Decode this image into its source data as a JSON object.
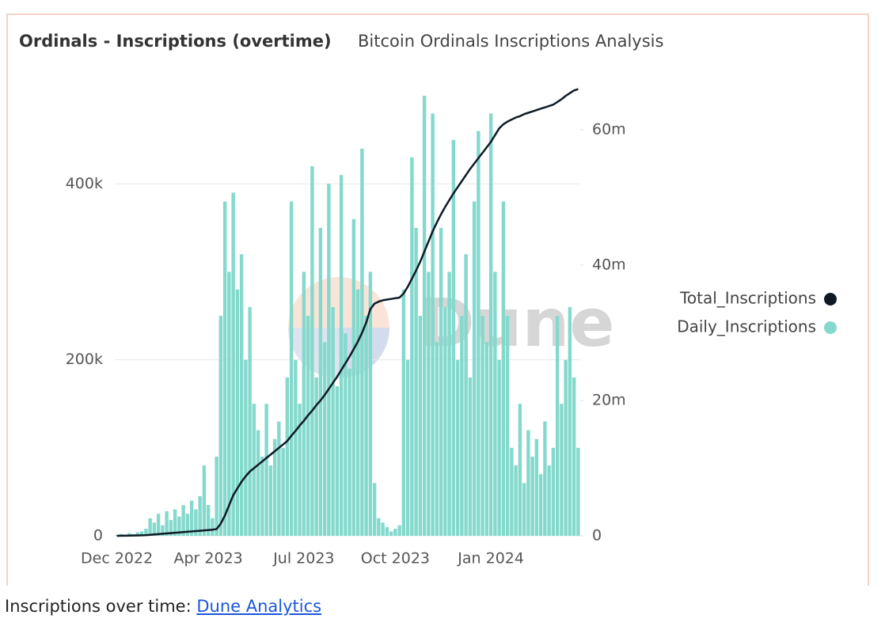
{
  "chart_data": {
    "type": "bar",
    "title": "Ordinals - Inscriptions (overtime)",
    "subtitle": "Bitcoin Ordinals Inscriptions Analysis",
    "watermark": "Dune",
    "categories": [
      "Dec 2022",
      null,
      null,
      null,
      null,
      null,
      null,
      null,
      null,
      null,
      null,
      null,
      null,
      null,
      null,
      null,
      null,
      null,
      null,
      null,
      null,
      null,
      "Apr 2023",
      null,
      null,
      null,
      null,
      null,
      null,
      null,
      null,
      null,
      null,
      null,
      null,
      null,
      null,
      null,
      null,
      null,
      null,
      null,
      null,
      null,
      null,
      "Jul 2023",
      null,
      null,
      null,
      null,
      null,
      null,
      null,
      null,
      null,
      null,
      null,
      null,
      null,
      null,
      null,
      null,
      null,
      null,
      null,
      null,
      null,
      "Oct 2023",
      null,
      null,
      null,
      null,
      null,
      null,
      null,
      null,
      null,
      null,
      null,
      null,
      null,
      null,
      null,
      null,
      null,
      null,
      null,
      null,
      null,
      null,
      "Jan 2024",
      null,
      null,
      null,
      null,
      null,
      null,
      null,
      null,
      null,
      null,
      null,
      null,
      null,
      null,
      null,
      null,
      null,
      null,
      null,
      null,
      null
    ],
    "series": [
      {
        "name": "Total_Inscriptions",
        "color": "#0d1a26",
        "type": "line",
        "axis": "y2",
        "values": [
          0,
          10000,
          20000,
          30000,
          40000,
          60000,
          80000,
          100000,
          150000,
          200000,
          250000,
          300000,
          350000,
          400000,
          450000,
          500000,
          550000,
          600000,
          650000,
          700000,
          750000,
          800000,
          850000,
          900000,
          1000000,
          1800000,
          3000000,
          4500000,
          6000000,
          7000000,
          8000000,
          8800000,
          9500000,
          10000000,
          10500000,
          11000000,
          11500000,
          12000000,
          12500000,
          13000000,
          13500000,
          14000000,
          14800000,
          15500000,
          16300000,
          17000000,
          17800000,
          18500000,
          19300000,
          20000000,
          20800000,
          21700000,
          22600000,
          23500000,
          24500000,
          25500000,
          26500000,
          27600000,
          28700000,
          30000000,
          31500000,
          33500000,
          34300000,
          34600000,
          34800000,
          34900000,
          35000000,
          35100000,
          35200000,
          35800000,
          36800000,
          38000000,
          39200000,
          40500000,
          42000000,
          43500000,
          45000000,
          46300000,
          47500000,
          48600000,
          49600000,
          50600000,
          51500000,
          52400000,
          53300000,
          54200000,
          55000000,
          55800000,
          56600000,
          57400000,
          58200000,
          59200000,
          60200000,
          60800000,
          61200000,
          61500000,
          61800000,
          62000000,
          62300000,
          62500000,
          62700000,
          62900000,
          63100000,
          63300000,
          63500000,
          63700000,
          64100000,
          64500000,
          65000000,
          65400000,
          65800000,
          66000000
        ]
      },
      {
        "name": "Daily_Inscriptions",
        "color": "#84d9cd",
        "type": "bar",
        "values": [
          1000,
          2000,
          1500,
          3000,
          2000,
          4000,
          5000,
          8000,
          20000,
          15000,
          25000,
          12000,
          28000,
          18000,
          30000,
          22000,
          35000,
          25000,
          40000,
          30000,
          45000,
          80000,
          35000,
          20000,
          90000,
          250000,
          380000,
          300000,
          390000,
          280000,
          320000,
          200000,
          260000,
          150000,
          120000,
          90000,
          150000,
          80000,
          110000,
          130000,
          100000,
          180000,
          380000,
          200000,
          150000,
          300000,
          250000,
          420000,
          180000,
          350000,
          220000,
          400000,
          260000,
          170000,
          410000,
          230000,
          190000,
          360000,
          280000,
          440000,
          250000,
          300000,
          60000,
          20000,
          15000,
          10000,
          5000,
          8000,
          12000,
          280000,
          200000,
          430000,
          350000,
          250000,
          500000,
          300000,
          480000,
          220000,
          350000,
          260000,
          300000,
          450000,
          200000,
          250000,
          320000,
          180000,
          380000,
          460000,
          250000,
          220000,
          480000,
          300000,
          200000,
          380000,
          250000,
          100000,
          80000,
          150000,
          60000,
          120000,
          90000,
          110000,
          70000,
          130000,
          80000,
          100000,
          250000,
          150000,
          200000,
          260000,
          180000,
          100000
        ]
      }
    ],
    "ylim": [
      0,
      510000
    ],
    "yticks": [
      0,
      {
        "value": 200000,
        "label": "200k"
      },
      {
        "value": 400000,
        "label": "400k"
      }
    ],
    "y2lim": [
      0,
      66300000
    ],
    "y2ticks": [
      0,
      {
        "value": 20000000,
        "label": "20m"
      },
      {
        "value": 40000000,
        "label": "40m"
      },
      {
        "value": 60000000,
        "label": "60m"
      }
    ],
    "grid": true,
    "legend": "right"
  },
  "caption": {
    "text": "Inscriptions over time:",
    "link": "Dune Analytics"
  }
}
